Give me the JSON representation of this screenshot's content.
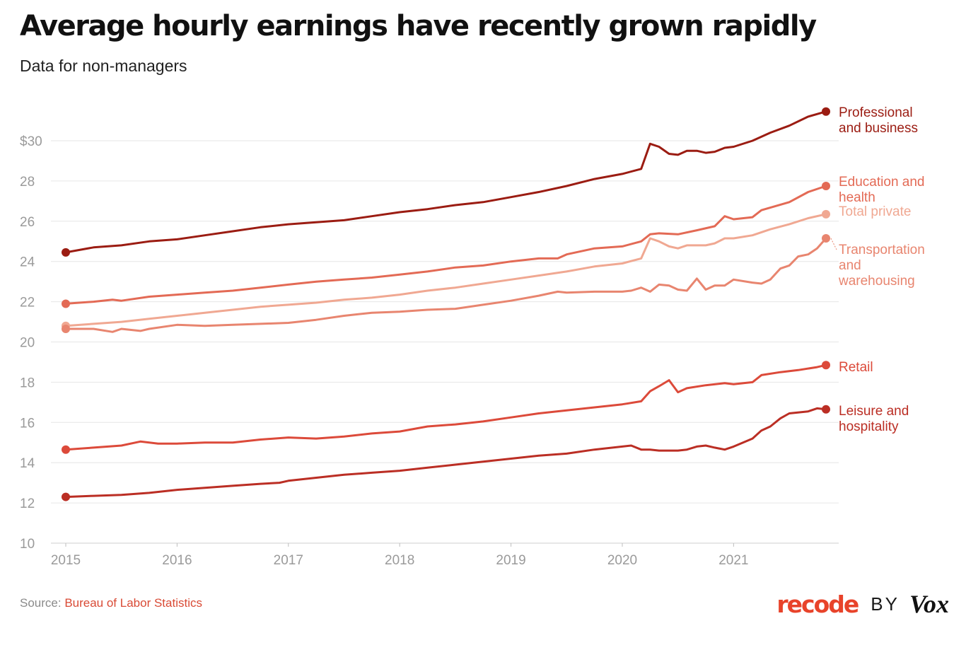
{
  "header": {
    "title": "Average hourly earnings have recently grown rapidly",
    "subtitle": "Data for non-managers"
  },
  "footer": {
    "source_prefix": "Source: ",
    "source_link": "Bureau of Labor Statistics",
    "brand_recode": "recode",
    "brand_by": "BY",
    "brand_vox": "Vox"
  },
  "chart_data": {
    "type": "line",
    "title": "Average hourly earnings have recently grown rapidly",
    "subtitle": "Data for non-managers",
    "xlabel": "",
    "ylabel": "",
    "xlim": [
      2015.0,
      2021.83
    ],
    "ylim": [
      10,
      31.5
    ],
    "x_ticks": [
      {
        "value": 2015,
        "label": "2015"
      },
      {
        "value": 2016,
        "label": "2016"
      },
      {
        "value": 2017,
        "label": "2017"
      },
      {
        "value": 2018,
        "label": "2018"
      },
      {
        "value": 2019,
        "label": "2019"
      },
      {
        "value": 2020,
        "label": "2020"
      },
      {
        "value": 2021,
        "label": "2021"
      }
    ],
    "y_ticks": [
      {
        "value": 10,
        "label": "10"
      },
      {
        "value": 12,
        "label": "12"
      },
      {
        "value": 14,
        "label": "14"
      },
      {
        "value": 16,
        "label": "16"
      },
      {
        "value": 18,
        "label": "18"
      },
      {
        "value": 20,
        "label": "20"
      },
      {
        "value": 22,
        "label": "22"
      },
      {
        "value": 24,
        "label": "24"
      },
      {
        "value": 26,
        "label": "26"
      },
      {
        "value": 28,
        "label": "28"
      },
      {
        "value": 30,
        "label": "$30"
      }
    ],
    "grid": true,
    "legend": "direct labels at line ends",
    "series": [
      {
        "name": "Professional and business",
        "label_lines": [
          "Professional",
          "and business"
        ],
        "color": "#9b1c12",
        "points": [
          [
            2015.0,
            24.45
          ],
          [
            2015.25,
            24.7
          ],
          [
            2015.5,
            24.8
          ],
          [
            2015.75,
            25.0
          ],
          [
            2016.0,
            25.1
          ],
          [
            2016.25,
            25.3
          ],
          [
            2016.5,
            25.5
          ],
          [
            2016.75,
            25.7
          ],
          [
            2017.0,
            25.85
          ],
          [
            2017.25,
            25.95
          ],
          [
            2017.5,
            26.05
          ],
          [
            2017.75,
            26.25
          ],
          [
            2018.0,
            26.45
          ],
          [
            2018.25,
            26.6
          ],
          [
            2018.5,
            26.8
          ],
          [
            2018.75,
            26.95
          ],
          [
            2019.0,
            27.2
          ],
          [
            2019.25,
            27.45
          ],
          [
            2019.5,
            27.75
          ],
          [
            2019.75,
            28.1
          ],
          [
            2020.0,
            28.35
          ],
          [
            2020.17,
            28.6
          ],
          [
            2020.25,
            29.85
          ],
          [
            2020.33,
            29.7
          ],
          [
            2020.42,
            29.35
          ],
          [
            2020.5,
            29.3
          ],
          [
            2020.58,
            29.5
          ],
          [
            2020.67,
            29.5
          ],
          [
            2020.75,
            29.4
          ],
          [
            2020.83,
            29.45
          ],
          [
            2020.92,
            29.65
          ],
          [
            2021.0,
            29.7
          ],
          [
            2021.17,
            30.0
          ],
          [
            2021.33,
            30.4
          ],
          [
            2021.5,
            30.75
          ],
          [
            2021.67,
            31.2
          ],
          [
            2021.83,
            31.45
          ]
        ]
      },
      {
        "name": "Education and health",
        "label_lines": [
          "Education and",
          "health"
        ],
        "color": "#e36a55",
        "points": [
          [
            2015.0,
            21.9
          ],
          [
            2015.25,
            22.0
          ],
          [
            2015.42,
            22.1
          ],
          [
            2015.5,
            22.05
          ],
          [
            2015.75,
            22.25
          ],
          [
            2016.0,
            22.35
          ],
          [
            2016.25,
            22.45
          ],
          [
            2016.5,
            22.55
          ],
          [
            2016.75,
            22.7
          ],
          [
            2017.0,
            22.85
          ],
          [
            2017.25,
            23.0
          ],
          [
            2017.5,
            23.1
          ],
          [
            2017.75,
            23.2
          ],
          [
            2018.0,
            23.35
          ],
          [
            2018.25,
            23.5
          ],
          [
            2018.5,
            23.7
          ],
          [
            2018.75,
            23.8
          ],
          [
            2019.0,
            24.0
          ],
          [
            2019.25,
            24.15
          ],
          [
            2019.42,
            24.15
          ],
          [
            2019.5,
            24.35
          ],
          [
            2019.75,
            24.65
          ],
          [
            2020.0,
            24.75
          ],
          [
            2020.17,
            25.0
          ],
          [
            2020.25,
            25.35
          ],
          [
            2020.33,
            25.4
          ],
          [
            2020.5,
            25.35
          ],
          [
            2020.67,
            25.55
          ],
          [
            2020.83,
            25.75
          ],
          [
            2020.92,
            26.25
          ],
          [
            2021.0,
            26.1
          ],
          [
            2021.17,
            26.2
          ],
          [
            2021.25,
            26.55
          ],
          [
            2021.5,
            26.95
          ],
          [
            2021.67,
            27.45
          ],
          [
            2021.83,
            27.75
          ]
        ]
      },
      {
        "name": "Total private",
        "label_lines": [
          "Total private"
        ],
        "color": "#f0a892",
        "points": [
          [
            2015.0,
            20.8
          ],
          [
            2015.25,
            20.9
          ],
          [
            2015.5,
            21.0
          ],
          [
            2015.75,
            21.15
          ],
          [
            2016.0,
            21.3
          ],
          [
            2016.25,
            21.45
          ],
          [
            2016.5,
            21.6
          ],
          [
            2016.75,
            21.75
          ],
          [
            2017.0,
            21.85
          ],
          [
            2017.25,
            21.95
          ],
          [
            2017.5,
            22.1
          ],
          [
            2017.75,
            22.2
          ],
          [
            2018.0,
            22.35
          ],
          [
            2018.25,
            22.55
          ],
          [
            2018.5,
            22.7
          ],
          [
            2018.75,
            22.9
          ],
          [
            2019.0,
            23.1
          ],
          [
            2019.25,
            23.3
          ],
          [
            2019.5,
            23.5
          ],
          [
            2019.75,
            23.75
          ],
          [
            2020.0,
            23.9
          ],
          [
            2020.17,
            24.15
          ],
          [
            2020.25,
            25.15
          ],
          [
            2020.33,
            25.0
          ],
          [
            2020.42,
            24.75
          ],
          [
            2020.5,
            24.65
          ],
          [
            2020.58,
            24.8
          ],
          [
            2020.75,
            24.8
          ],
          [
            2020.83,
            24.9
          ],
          [
            2020.92,
            25.15
          ],
          [
            2021.0,
            25.15
          ],
          [
            2021.17,
            25.3
          ],
          [
            2021.33,
            25.6
          ],
          [
            2021.5,
            25.85
          ],
          [
            2021.67,
            26.15
          ],
          [
            2021.83,
            26.35
          ]
        ]
      },
      {
        "name": "Transportation and warehousing",
        "label_lines": [
          "Transportation",
          "and",
          "warehousing"
        ],
        "color": "#e8856f",
        "points": [
          [
            2015.0,
            20.65
          ],
          [
            2015.25,
            20.65
          ],
          [
            2015.42,
            20.5
          ],
          [
            2015.5,
            20.65
          ],
          [
            2015.67,
            20.55
          ],
          [
            2015.75,
            20.65
          ],
          [
            2016.0,
            20.85
          ],
          [
            2016.25,
            20.8
          ],
          [
            2016.5,
            20.85
          ],
          [
            2016.75,
            20.9
          ],
          [
            2017.0,
            20.95
          ],
          [
            2017.25,
            21.1
          ],
          [
            2017.5,
            21.3
          ],
          [
            2017.75,
            21.45
          ],
          [
            2018.0,
            21.5
          ],
          [
            2018.25,
            21.6
          ],
          [
            2018.5,
            21.65
          ],
          [
            2018.75,
            21.85
          ],
          [
            2019.0,
            22.05
          ],
          [
            2019.25,
            22.3
          ],
          [
            2019.42,
            22.5
          ],
          [
            2019.5,
            22.45
          ],
          [
            2019.75,
            22.5
          ],
          [
            2020.0,
            22.5
          ],
          [
            2020.08,
            22.55
          ],
          [
            2020.17,
            22.7
          ],
          [
            2020.25,
            22.5
          ],
          [
            2020.33,
            22.85
          ],
          [
            2020.42,
            22.8
          ],
          [
            2020.5,
            22.6
          ],
          [
            2020.58,
            22.55
          ],
          [
            2020.67,
            23.15
          ],
          [
            2020.75,
            22.6
          ],
          [
            2020.83,
            22.8
          ],
          [
            2020.92,
            22.8
          ],
          [
            2021.0,
            23.1
          ],
          [
            2021.17,
            22.95
          ],
          [
            2021.25,
            22.9
          ],
          [
            2021.33,
            23.1
          ],
          [
            2021.42,
            23.65
          ],
          [
            2021.5,
            23.8
          ],
          [
            2021.58,
            24.25
          ],
          [
            2021.67,
            24.35
          ],
          [
            2021.75,
            24.65
          ],
          [
            2021.83,
            25.15
          ]
        ]
      },
      {
        "name": "Retail",
        "label_lines": [
          "Retail"
        ],
        "color": "#dc4a3a",
        "points": [
          [
            2015.0,
            14.65
          ],
          [
            2015.25,
            14.75
          ],
          [
            2015.5,
            14.85
          ],
          [
            2015.67,
            15.05
          ],
          [
            2015.83,
            14.95
          ],
          [
            2016.0,
            14.95
          ],
          [
            2016.25,
            15.0
          ],
          [
            2016.5,
            15.0
          ],
          [
            2016.75,
            15.15
          ],
          [
            2017.0,
            15.25
          ],
          [
            2017.25,
            15.2
          ],
          [
            2017.5,
            15.3
          ],
          [
            2017.75,
            15.45
          ],
          [
            2018.0,
            15.55
          ],
          [
            2018.25,
            15.8
          ],
          [
            2018.5,
            15.9
          ],
          [
            2018.75,
            16.05
          ],
          [
            2019.0,
            16.25
          ],
          [
            2019.25,
            16.45
          ],
          [
            2019.5,
            16.6
          ],
          [
            2019.75,
            16.75
          ],
          [
            2020.0,
            16.9
          ],
          [
            2020.17,
            17.05
          ],
          [
            2020.25,
            17.55
          ],
          [
            2020.33,
            17.8
          ],
          [
            2020.42,
            18.1
          ],
          [
            2020.5,
            17.5
          ],
          [
            2020.58,
            17.7
          ],
          [
            2020.75,
            17.85
          ],
          [
            2020.92,
            17.95
          ],
          [
            2021.0,
            17.9
          ],
          [
            2021.17,
            18.0
          ],
          [
            2021.25,
            18.35
          ],
          [
            2021.42,
            18.5
          ],
          [
            2021.58,
            18.6
          ],
          [
            2021.75,
            18.75
          ],
          [
            2021.83,
            18.85
          ]
        ]
      },
      {
        "name": "Leisure and hospitality",
        "label_lines": [
          "Leisure and",
          "hospitality"
        ],
        "color": "#bb2e24",
        "points": [
          [
            2015.0,
            12.3
          ],
          [
            2015.25,
            12.35
          ],
          [
            2015.5,
            12.4
          ],
          [
            2015.75,
            12.5
          ],
          [
            2016.0,
            12.65
          ],
          [
            2016.25,
            12.75
          ],
          [
            2016.5,
            12.85
          ],
          [
            2016.75,
            12.95
          ],
          [
            2016.92,
            13.0
          ],
          [
            2017.0,
            13.1
          ],
          [
            2017.25,
            13.25
          ],
          [
            2017.5,
            13.4
          ],
          [
            2017.75,
            13.5
          ],
          [
            2018.0,
            13.6
          ],
          [
            2018.25,
            13.75
          ],
          [
            2018.5,
            13.9
          ],
          [
            2018.75,
            14.05
          ],
          [
            2019.0,
            14.2
          ],
          [
            2019.25,
            14.35
          ],
          [
            2019.5,
            14.45
          ],
          [
            2019.75,
            14.65
          ],
          [
            2020.0,
            14.8
          ],
          [
            2020.08,
            14.85
          ],
          [
            2020.17,
            14.65
          ],
          [
            2020.25,
            14.65
          ],
          [
            2020.33,
            14.6
          ],
          [
            2020.5,
            14.6
          ],
          [
            2020.58,
            14.65
          ],
          [
            2020.67,
            14.8
          ],
          [
            2020.75,
            14.85
          ],
          [
            2020.83,
            14.75
          ],
          [
            2020.92,
            14.65
          ],
          [
            2021.0,
            14.8
          ],
          [
            2021.17,
            15.2
          ],
          [
            2021.25,
            15.6
          ],
          [
            2021.33,
            15.8
          ],
          [
            2021.42,
            16.2
          ],
          [
            2021.5,
            16.45
          ],
          [
            2021.67,
            16.55
          ],
          [
            2021.75,
            16.7
          ],
          [
            2021.83,
            16.65
          ]
        ]
      }
    ]
  }
}
